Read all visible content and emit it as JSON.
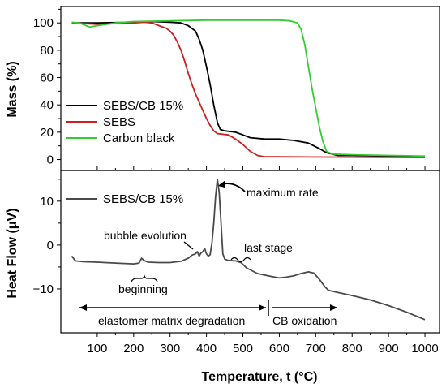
{
  "chart_data": [
    {
      "type": "line",
      "ylabel": "Mass (%)",
      "xlim": [
        0,
        1040
      ],
      "ylim": [
        -8,
        112
      ],
      "yticks": [
        0,
        20,
        40,
        60,
        80,
        100
      ],
      "legend_position": "center-left",
      "series": [
        {
          "name": "SEBS/CB 15%",
          "color": "#000000",
          "points": [
            [
              30,
              100
            ],
            [
              100,
              100
            ],
            [
              200,
              100.5
            ],
            [
              250,
              101
            ],
            [
              300,
              100.5
            ],
            [
              330,
              100
            ],
            [
              350,
              98
            ],
            [
              370,
              94
            ],
            [
              380,
              88
            ],
            [
              390,
              80
            ],
            [
              400,
              68
            ],
            [
              410,
              55
            ],
            [
              420,
              40
            ],
            [
              430,
              27
            ],
            [
              438,
              22
            ],
            [
              450,
              21
            ],
            [
              480,
              20
            ],
            [
              500,
              18
            ],
            [
              520,
              16
            ],
            [
              560,
              15
            ],
            [
              600,
              15
            ],
            [
              640,
              14
            ],
            [
              680,
              12
            ],
            [
              710,
              8
            ],
            [
              730,
              5
            ],
            [
              760,
              3
            ],
            [
              800,
              3
            ],
            [
              900,
              2.5
            ],
            [
              1000,
              2
            ]
          ]
        },
        {
          "name": "SEBS",
          "color": "#cc2020",
          "points": [
            [
              30,
              100
            ],
            [
              100,
              99
            ],
            [
              200,
              100
            ],
            [
              230,
              100.5
            ],
            [
              250,
              100
            ],
            [
              270,
              98
            ],
            [
              290,
              96
            ],
            [
              300,
              94
            ],
            [
              310,
              91
            ],
            [
              320,
              86
            ],
            [
              330,
              80
            ],
            [
              340,
              72
            ],
            [
              350,
              63
            ],
            [
              360,
              55
            ],
            [
              370,
              48
            ],
            [
              380,
              42
            ],
            [
              390,
              36
            ],
            [
              400,
              30
            ],
            [
              410,
              25
            ],
            [
              420,
              21
            ],
            [
              430,
              19
            ],
            [
              460,
              18
            ],
            [
              480,
              15
            ],
            [
              500,
              11
            ],
            [
              520,
              6
            ],
            [
              540,
              3
            ],
            [
              560,
              2
            ],
            [
              600,
              2
            ],
            [
              1000,
              1.5
            ]
          ]
        },
        {
          "name": "Carbon black",
          "color": "#33cc33",
          "points": [
            [
              30,
              100.5
            ],
            [
              50,
              100
            ],
            [
              70,
              98
            ],
            [
              80,
              97
            ],
            [
              100,
              98
            ],
            [
              150,
              100
            ],
            [
              200,
              101
            ],
            [
              300,
              101.5
            ],
            [
              400,
              102
            ],
            [
              500,
              102
            ],
            [
              600,
              102
            ],
            [
              630,
              101.5
            ],
            [
              650,
              100
            ],
            [
              660,
              95
            ],
            [
              670,
              84
            ],
            [
              680,
              68
            ],
            [
              690,
              52
            ],
            [
              700,
              38
            ],
            [
              710,
              24
            ],
            [
              720,
              13
            ],
            [
              730,
              6
            ],
            [
              745,
              4
            ],
            [
              800,
              3.5
            ],
            [
              900,
              3
            ],
            [
              1000,
              2.5
            ]
          ]
        }
      ]
    },
    {
      "type": "line",
      "xlabel": "Temperature, t (°C)",
      "ylabel": "Heat Flow (μV)",
      "xlim": [
        0,
        1040
      ],
      "ylim": [
        -20,
        17
      ],
      "yticks": [
        -10,
        0,
        10
      ],
      "xticks": [
        100,
        200,
        300,
        400,
        500,
        600,
        700,
        800,
        900,
        1000
      ],
      "legend_position": "top-left",
      "series": [
        {
          "name": "SEBS/CB 15%",
          "color": "#4a4a4a",
          "points": [
            [
              30,
              -2.5
            ],
            [
              40,
              -3.6
            ],
            [
              60,
              -3.8
            ],
            [
              100,
              -3.9
            ],
            [
              150,
              -4.1
            ],
            [
              200,
              -4.3
            ],
            [
              215,
              -4.1
            ],
            [
              222,
              -3.0
            ],
            [
              228,
              -3.5
            ],
            [
              240,
              -3.9
            ],
            [
              270,
              -4.0
            ],
            [
              300,
              -4.0
            ],
            [
              330,
              -3.7
            ],
            [
              350,
              -3.0
            ],
            [
              360,
              -2.3
            ],
            [
              370,
              -2.0
            ],
            [
              375,
              -1.5
            ],
            [
              380,
              -2.5
            ],
            [
              385,
              -1.8
            ],
            [
              390,
              -1.5
            ],
            [
              395,
              -0.8
            ],
            [
              400,
              -2.0
            ],
            [
              405,
              -2.5
            ],
            [
              410,
              -2.2
            ],
            [
              415,
              0.5
            ],
            [
              420,
              5.0
            ],
            [
              425,
              11.0
            ],
            [
              430,
              15.0
            ],
            [
              435,
              12.0
            ],
            [
              440,
              5.0
            ],
            [
              445,
              -2.0
            ],
            [
              450,
              -3.2
            ],
            [
              460,
              -3.5
            ],
            [
              480,
              -3.6
            ],
            [
              495,
              -4.0
            ],
            [
              510,
              -5.2
            ],
            [
              540,
              -6.5
            ],
            [
              580,
              -7.2
            ],
            [
              600,
              -7.5
            ],
            [
              620,
              -7.3
            ],
            [
              640,
              -7.0
            ],
            [
              660,
              -6.5
            ],
            [
              680,
              -6.1
            ],
            [
              695,
              -6.4
            ],
            [
              710,
              -7.8
            ],
            [
              725,
              -9.5
            ],
            [
              735,
              -10.3
            ],
            [
              760,
              -10.8
            ],
            [
              800,
              -11.5
            ],
            [
              850,
              -12.5
            ],
            [
              900,
              -13.8
            ],
            [
              950,
              -15.3
            ],
            [
              1000,
              -17.0
            ]
          ]
        }
      ],
      "annotations": [
        {
          "text": "maximum rate",
          "x": 510,
          "y": 11.5
        },
        {
          "text": "bubble evolution",
          "x": 255,
          "y": 2.8
        },
        {
          "text": "last stage",
          "x": 555,
          "y": -0.1
        },
        {
          "text": "beginning",
          "x": 160,
          "y": -8.8
        },
        {
          "text": "elastomer matrix degradation",
          "x": 310,
          "y": -15.3
        },
        {
          "text": "CB oxidation",
          "x": 670,
          "y": -15.3
        }
      ]
    }
  ]
}
